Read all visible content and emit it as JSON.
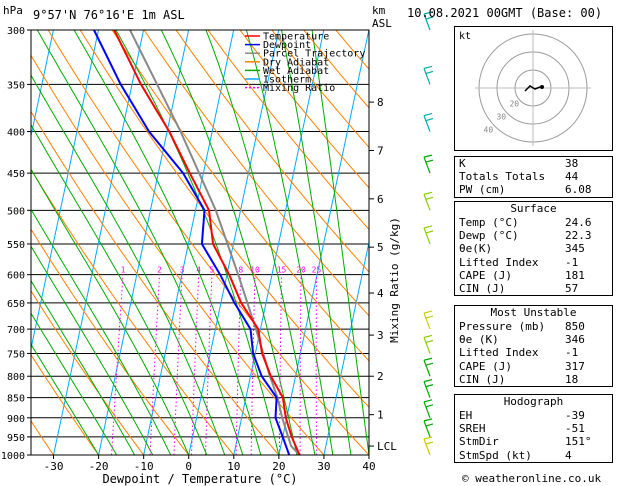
{
  "header": {
    "hpa_label": "hPa",
    "location": "9°57'N  76°16'E  1m  ASL",
    "km_label": "km",
    "asl_label": "ASL",
    "date": "10.08.2021  00GMT  (Base: 00)"
  },
  "credit": "© weatheronline.co.uk",
  "chart_data": {
    "type": "skew-t",
    "xlabel": "Dewpoint / Temperature (°C)",
    "mixing_axis_label": "Mixing Ratio (g/kg)",
    "x_ticks": [
      -30,
      -20,
      -10,
      0,
      10,
      20,
      30,
      40
    ],
    "xlim": [
      -35,
      40
    ],
    "pressure_levels": [
      300,
      350,
      400,
      450,
      500,
      550,
      600,
      650,
      700,
      750,
      800,
      850,
      900,
      950,
      1000
    ],
    "ylim_hpa": [
      1000,
      300
    ],
    "km_ticks": [
      {
        "label": "8",
        "p": 368
      },
      {
        "label": "7",
        "p": 422
      },
      {
        "label": "6",
        "p": 484
      },
      {
        "label": "5",
        "p": 555
      },
      {
        "label": "4",
        "p": 632
      },
      {
        "label": "3",
        "p": 712
      },
      {
        "label": "2",
        "p": 800
      },
      {
        "label": "1",
        "p": 892
      },
      {
        "label": "LCL",
        "p": 975
      }
    ],
    "mixing_ratio_labels": [
      "1",
      "2",
      "3",
      "4",
      "5",
      "8",
      "10",
      "15",
      "20",
      "25"
    ],
    "legend": [
      {
        "name": "Temperature",
        "color": "#ff0000",
        "dash": false
      },
      {
        "name": "Dewpoint",
        "color": "#0000ff",
        "dash": false
      },
      {
        "name": "Parcel Trajectory",
        "color": "#888888",
        "dash": false
      },
      {
        "name": "Dry Adiabat",
        "color": "#ff8000",
        "dash": false
      },
      {
        "name": "Wet Adiabat",
        "color": "#00aa00",
        "dash": false
      },
      {
        "name": "Isotherm",
        "color": "#00aaff",
        "dash": false
      },
      {
        "name": "Mixing Ratio",
        "color": "#ff00ff",
        "dash": true
      }
    ],
    "temperature": [
      {
        "p": 1000,
        "t": 24.6
      },
      {
        "p": 950,
        "t": 22.0
      },
      {
        "p": 900,
        "t": 19.8
      },
      {
        "p": 850,
        "t": 18.2
      },
      {
        "p": 800,
        "t": 14.5
      },
      {
        "p": 750,
        "t": 11.5
      },
      {
        "p": 700,
        "t": 9.5
      },
      {
        "p": 650,
        "t": 4.5
      },
      {
        "p": 600,
        "t": 0.5
      },
      {
        "p": 550,
        "t": -4.5
      },
      {
        "p": 500,
        "t": -7.0
      },
      {
        "p": 450,
        "t": -13.0
      },
      {
        "p": 400,
        "t": -19.5
      },
      {
        "p": 350,
        "t": -28.0
      },
      {
        "p": 300,
        "t": -36.5
      }
    ],
    "dewpoint": [
      {
        "p": 1000,
        "t": 22.3
      },
      {
        "p": 950,
        "t": 20.0
      },
      {
        "p": 900,
        "t": 17.5
      },
      {
        "p": 850,
        "t": 16.8
      },
      {
        "p": 800,
        "t": 12.5
      },
      {
        "p": 750,
        "t": 9.5
      },
      {
        "p": 700,
        "t": 7.8
      },
      {
        "p": 650,
        "t": 3.0
      },
      {
        "p": 600,
        "t": -1.5
      },
      {
        "p": 550,
        "t": -7.0
      },
      {
        "p": 500,
        "t": -8.0
      },
      {
        "p": 450,
        "t": -14.5
      },
      {
        "p": 400,
        "t": -24.0
      },
      {
        "p": 350,
        "t": -32.5
      },
      {
        "p": 300,
        "t": -41.0
      }
    ],
    "parcel": [
      {
        "p": 1000,
        "t": 24.6
      },
      {
        "p": 975,
        "t": 22.3
      },
      {
        "p": 900,
        "t": 19.0
      },
      {
        "p": 850,
        "t": 17.0
      },
      {
        "p": 800,
        "t": 14.3
      },
      {
        "p": 700,
        "t": 9.0
      },
      {
        "p": 600,
        "t": 2.5
      },
      {
        "p": 500,
        "t": -5.5
      },
      {
        "p": 400,
        "t": -17.0
      },
      {
        "p": 300,
        "t": -33.0
      }
    ],
    "wind_barbs": [
      {
        "p": 300,
        "color": "#00aaaa"
      },
      {
        "p": 350,
        "color": "#00aaaa"
      },
      {
        "p": 400,
        "color": "#00aaaa"
      },
      {
        "p": 450,
        "color": "#00aa00"
      },
      {
        "p": 500,
        "color": "#88cc00"
      },
      {
        "p": 550,
        "color": "#88cc00"
      },
      {
        "p": 700,
        "color": "#cccc00"
      },
      {
        "p": 750,
        "color": "#88cc00"
      },
      {
        "p": 800,
        "color": "#00aa00"
      },
      {
        "p": 850,
        "color": "#00aa00"
      },
      {
        "p": 900,
        "color": "#00aa00"
      },
      {
        "p": 950,
        "color": "#00aa00"
      },
      {
        "p": 1000,
        "color": "#cccc00"
      }
    ]
  },
  "hodograph": {
    "unit_label": "kt",
    "ring_labels": [
      "20",
      "30",
      "40"
    ]
  },
  "indices": [
    {
      "label": "K",
      "value": "38"
    },
    {
      "label": "Totals Totals",
      "value": "44"
    },
    {
      "label": "PW (cm)",
      "value": "6.08"
    }
  ],
  "surface": {
    "title": "Surface",
    "rows": [
      {
        "label": "Temp (°C)",
        "value": "24.6"
      },
      {
        "label": "Dewp (°C)",
        "value": "22.3"
      },
      {
        "label": "θe(K)",
        "value": "345"
      },
      {
        "label": "Lifted Index",
        "value": "-1"
      },
      {
        "label": "CAPE (J)",
        "value": "181"
      },
      {
        "label": "CIN (J)",
        "value": "57"
      }
    ]
  },
  "most_unstable": {
    "title": "Most Unstable",
    "rows": [
      {
        "label": "Pressure (mb)",
        "value": "850"
      },
      {
        "label": "θe (K)",
        "value": "346"
      },
      {
        "label": "Lifted Index",
        "value": "-1"
      },
      {
        "label": "CAPE (J)",
        "value": "317"
      },
      {
        "label": "CIN (J)",
        "value": "18"
      }
    ]
  },
  "hodograph_table": {
    "title": "Hodograph",
    "rows": [
      {
        "label": "EH",
        "value": "-39"
      },
      {
        "label": "SREH",
        "value": "-51"
      },
      {
        "label": "StmDir",
        "value": "151°"
      },
      {
        "label": "StmSpd (kt)",
        "value": "4"
      }
    ]
  }
}
